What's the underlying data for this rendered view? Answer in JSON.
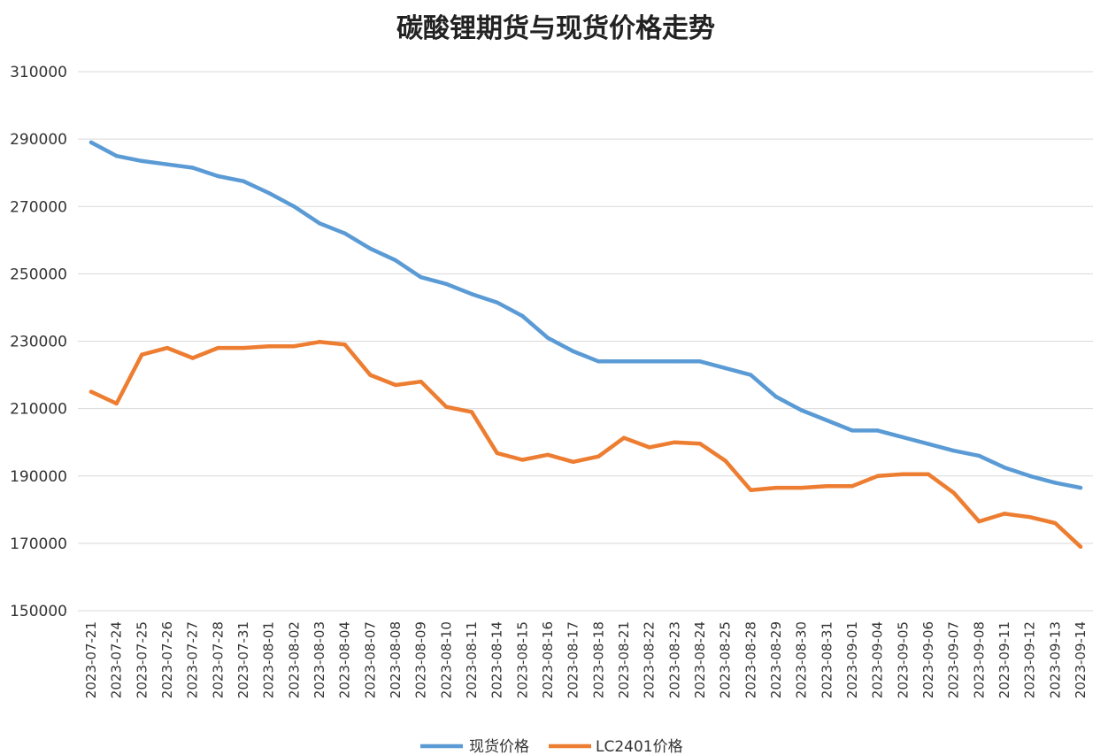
{
  "chart_data": {
    "type": "line",
    "title": "碳酸锂期货与现货价格走势",
    "xlabel": "",
    "ylabel": "",
    "ylim": [
      150000,
      310000
    ],
    "yticks": [
      150000,
      170000,
      190000,
      210000,
      230000,
      250000,
      270000,
      290000,
      310000
    ],
    "grid": true,
    "legend_position": "bottom",
    "categories": [
      "2023-07-21",
      "2023-07-24",
      "2023-07-25",
      "2023-07-26",
      "2023-07-27",
      "2023-07-28",
      "2023-07-31",
      "2023-08-01",
      "2023-08-02",
      "2023-08-03",
      "2023-08-04",
      "2023-08-07",
      "2023-08-08",
      "2023-08-09",
      "2023-08-10",
      "2023-08-11",
      "2023-08-14",
      "2023-08-15",
      "2023-08-16",
      "2023-08-17",
      "2023-08-18",
      "2023-08-21",
      "2023-08-22",
      "2023-08-23",
      "2023-08-24",
      "2023-08-25",
      "2023-08-28",
      "2023-08-29",
      "2023-08-30",
      "2023-08-31",
      "2023-09-01",
      "2023-09-04",
      "2023-09-05",
      "2023-09-06",
      "2023-09-07",
      "2023-09-08",
      "2023-09-11",
      "2023-09-12",
      "2023-09-13",
      "2023-09-14"
    ],
    "series": [
      {
        "name": "现货价格",
        "color": "#5b9bd5",
        "values": [
          289000,
          285000,
          283500,
          282500,
          281500,
          279000,
          277500,
          274000,
          270000,
          265000,
          262000,
          257500,
          254000,
          249000,
          247000,
          244000,
          241500,
          237500,
          231000,
          227000,
          224000,
          224000,
          224000,
          224000,
          224000,
          222000,
          220000,
          213500,
          209500,
          206500,
          203500,
          203500,
          201500,
          199500,
          197500,
          196000,
          192500,
          190000,
          188000,
          186500
        ]
      },
      {
        "name": "LC2401价格",
        "color": "#ed7d31",
        "values": [
          215000,
          211500,
          226000,
          228000,
          225000,
          228000,
          228000,
          228500,
          228500,
          229800,
          229000,
          220000,
          217000,
          218000,
          210500,
          209000,
          196800,
          194800,
          196300,
          194200,
          195800,
          201300,
          198500,
          200000,
          199600,
          194500,
          185800,
          186500,
          186500,
          187000,
          187000,
          190000,
          190500,
          190500,
          185000,
          176500,
          178800,
          177800,
          176000,
          169000
        ]
      }
    ]
  }
}
